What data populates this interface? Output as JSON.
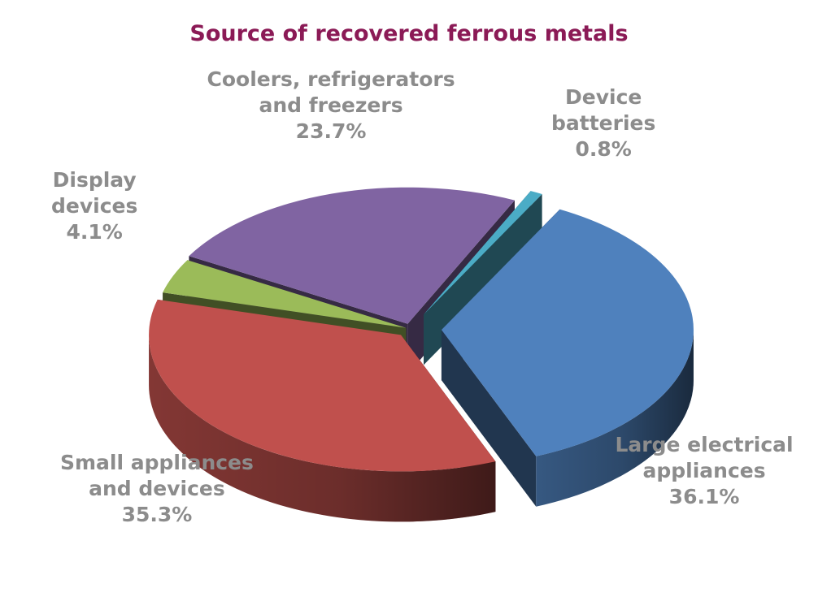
{
  "chart_data": {
    "type": "pie",
    "title": "Source of recovered ferrous metals",
    "three_d": true,
    "exploded": true,
    "legend": "none",
    "slices": [
      {
        "name": "Large electrical appliances",
        "label_lines": [
          "Large electrical",
          "appliances"
        ],
        "value": 36.1,
        "value_label": "36.1%",
        "color": "#4F81BD"
      },
      {
        "name": "Small appliances and devices",
        "label_lines": [
          "Small appliances",
          "and devices"
        ],
        "value": 35.3,
        "value_label": "35.3%",
        "color": "#C0504D"
      },
      {
        "name": "Display devices",
        "label_lines": [
          "Display",
          "devices"
        ],
        "value": 4.1,
        "value_label": "4.1%",
        "color": "#9BBB59"
      },
      {
        "name": "Coolers, refrigerators and freezers",
        "label_lines": [
          "Coolers, refrigerators",
          "and freezers"
        ],
        "value": 23.7,
        "value_label": "23.7%",
        "color": "#8064A2"
      },
      {
        "name": "Device batteries",
        "label_lines": [
          "Device",
          "batteries"
        ],
        "value": 0.8,
        "value_label": "0.8%",
        "color": "#4BACC6"
      }
    ]
  }
}
